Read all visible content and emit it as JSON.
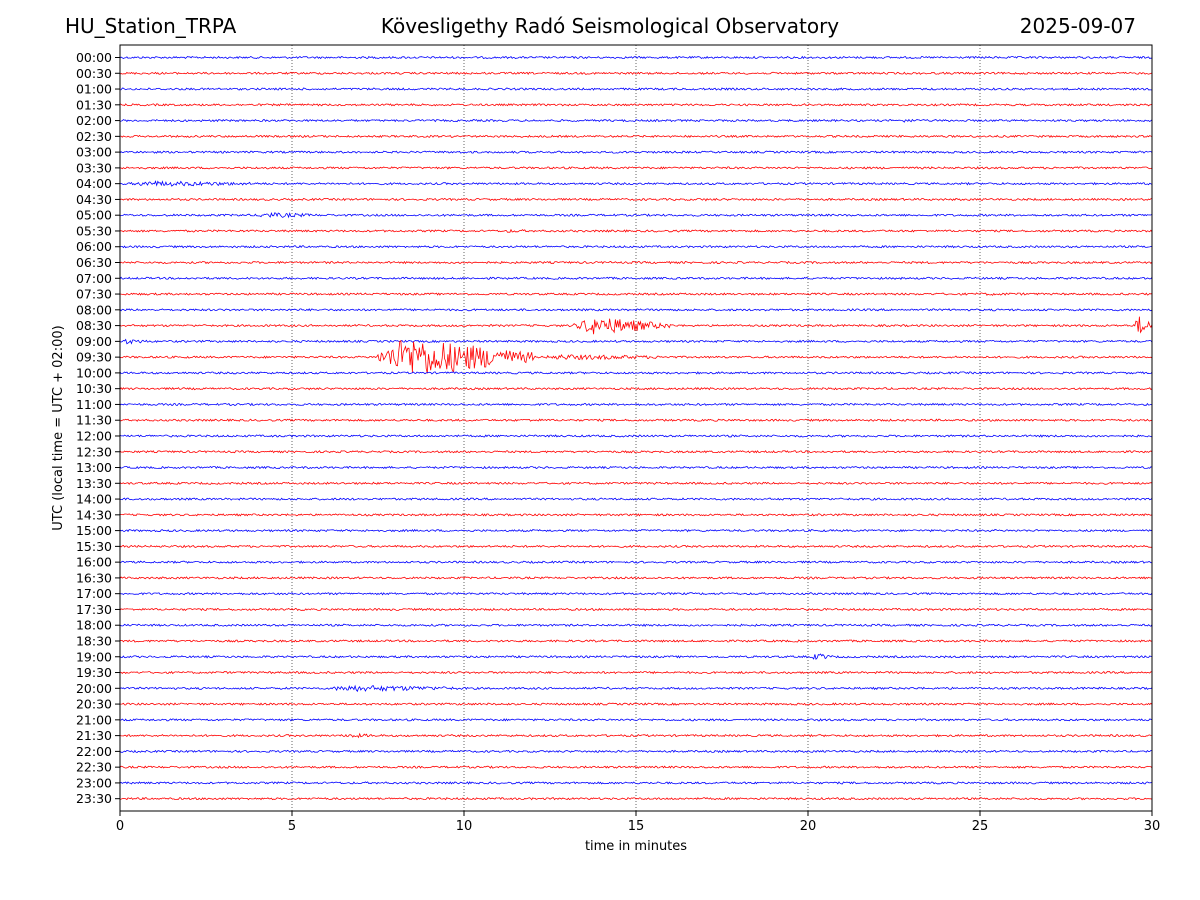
{
  "header": {
    "station": "HU_Station_TRPA",
    "title": "Kövesligethy Radó Seismological Observatory",
    "date": "2025-09-07"
  },
  "chart_data": {
    "type": "line",
    "subtype": "helicorder",
    "xlabel": "time in minutes",
    "ylabel": "UTC (local time = UTC + 02:00)",
    "xlim": [
      0,
      30
    ],
    "x_ticks": [
      0,
      5,
      10,
      15,
      20,
      25,
      30
    ],
    "grid": "vertical dotted lines at each x tick",
    "row_colors": [
      "#0000ff",
      "#ff0000"
    ],
    "rows": [
      "00:00",
      "00:30",
      "01:00",
      "01:30",
      "02:00",
      "02:30",
      "03:00",
      "03:30",
      "04:00",
      "04:30",
      "05:00",
      "05:30",
      "06:00",
      "06:30",
      "07:00",
      "07:30",
      "08:00",
      "08:30",
      "09:00",
      "09:30",
      "10:00",
      "10:30",
      "11:00",
      "11:30",
      "12:00",
      "12:30",
      "13:00",
      "13:30",
      "14:00",
      "14:30",
      "15:00",
      "15:30",
      "16:00",
      "16:30",
      "17:00",
      "17:30",
      "18:00",
      "18:30",
      "19:00",
      "19:30",
      "20:00",
      "20:30",
      "21:00",
      "21:30",
      "22:00",
      "22:30",
      "23:00",
      "23:30"
    ],
    "noise_level": 1,
    "events": [
      {
        "row": "02:00",
        "start": 22.5,
        "end": 23.8,
        "amplitude": 2
      },
      {
        "row": "04:00",
        "start": 0.0,
        "end": 5.0,
        "amplitude": 3
      },
      {
        "row": "04:30",
        "start": 16.5,
        "end": 18.5,
        "amplitude": 1.5
      },
      {
        "row": "05:00",
        "start": 3.8,
        "end": 6.2,
        "amplitude": 3
      },
      {
        "row": "05:30",
        "start": 11.0,
        "end": 12.5,
        "amplitude": 1.8
      },
      {
        "row": "07:30",
        "start": 24.0,
        "end": 30.0,
        "amplitude": 1.5
      },
      {
        "row": "08:30",
        "start": 13.2,
        "end": 16.0,
        "amplitude": 10
      },
      {
        "row": "08:30",
        "start": 29.5,
        "end": 30.0,
        "amplitude": 12
      },
      {
        "row": "09:00",
        "start": 0.0,
        "end": 1.0,
        "amplitude": 3
      },
      {
        "row": "09:30",
        "start": 7.5,
        "end": 12.0,
        "amplitude": 22
      },
      {
        "row": "09:30",
        "start": 12.0,
        "end": 17.0,
        "amplitude": 3
      },
      {
        "row": "11:30",
        "start": 11.5,
        "end": 13.5,
        "amplitude": 1.5
      },
      {
        "row": "19:00",
        "start": 20.1,
        "end": 20.8,
        "amplitude": 4
      },
      {
        "row": "20:00",
        "start": 5.8,
        "end": 10.8,
        "amplitude": 3.5
      },
      {
        "row": "21:30",
        "start": 6.4,
        "end": 7.8,
        "amplitude": 2.5
      }
    ]
  }
}
